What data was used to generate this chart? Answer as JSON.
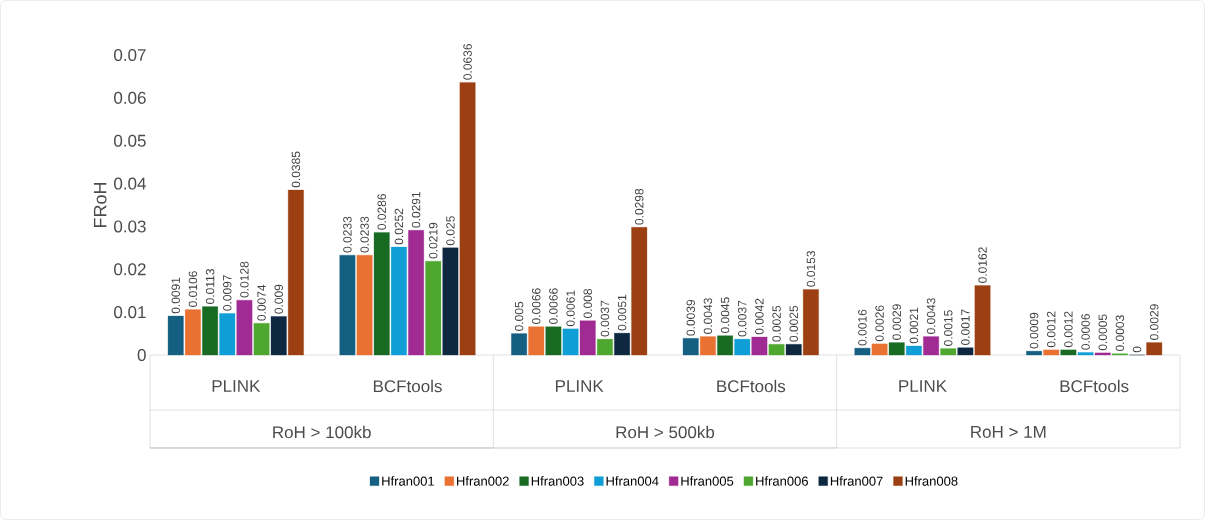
{
  "chart_data": {
    "type": "bar",
    "ylabel": "FRoH",
    "categories": [
      "PLINK",
      "BCFtools",
      "PLINK",
      "BCFtools",
      "PLINK",
      "BCFtools"
    ],
    "annotations": [
      "RoH > 100kb",
      "RoH > 500kb",
      "RoH > 1M"
    ],
    "series": [
      {
        "name": "Hfran001",
        "color": "#156082",
        "values": [
          0.0091,
          0.0233,
          0.005,
          0.0039,
          0.0016,
          0.0009
        ]
      },
      {
        "name": "Hfran002",
        "color": "#e97132",
        "values": [
          0.0106,
          0.0233,
          0.0066,
          0.0043,
          0.0026,
          0.0012
        ]
      },
      {
        "name": "Hfran003",
        "color": "#196b24",
        "values": [
          0.0113,
          0.0286,
          0.0066,
          0.0045,
          0.0029,
          0.0012
        ]
      },
      {
        "name": "Hfran004",
        "color": "#0f9ed5",
        "values": [
          0.0097,
          0.0252,
          0.0061,
          0.0037,
          0.0021,
          0.0006
        ]
      },
      {
        "name": "Hfran005",
        "color": "#a02b93",
        "values": [
          0.0128,
          0.0291,
          0.008,
          0.0042,
          0.0043,
          0.0005
        ]
      },
      {
        "name": "Hfran006",
        "color": "#4ea72e",
        "values": [
          0.0074,
          0.0219,
          0.0037,
          0.0025,
          0.0015,
          0.0003
        ]
      },
      {
        "name": "Hfran007",
        "color": "#0e2841",
        "values": [
          0.009,
          0.025,
          0.0051,
          0.0025,
          0.0017,
          0
        ]
      },
      {
        "name": "Hfran008",
        "color": "#9c3f12",
        "values": [
          0.0385,
          0.0636,
          0.0298,
          0.0153,
          0.0162,
          0.0029
        ]
      }
    ],
    "ylim": [
      0,
      0.07
    ],
    "yticks": [
      0,
      0.01,
      0.02,
      0.03,
      0.04,
      0.05,
      0.06,
      0.07
    ],
    "data_labels": true,
    "legend": "bottom",
    "grid": false
  }
}
